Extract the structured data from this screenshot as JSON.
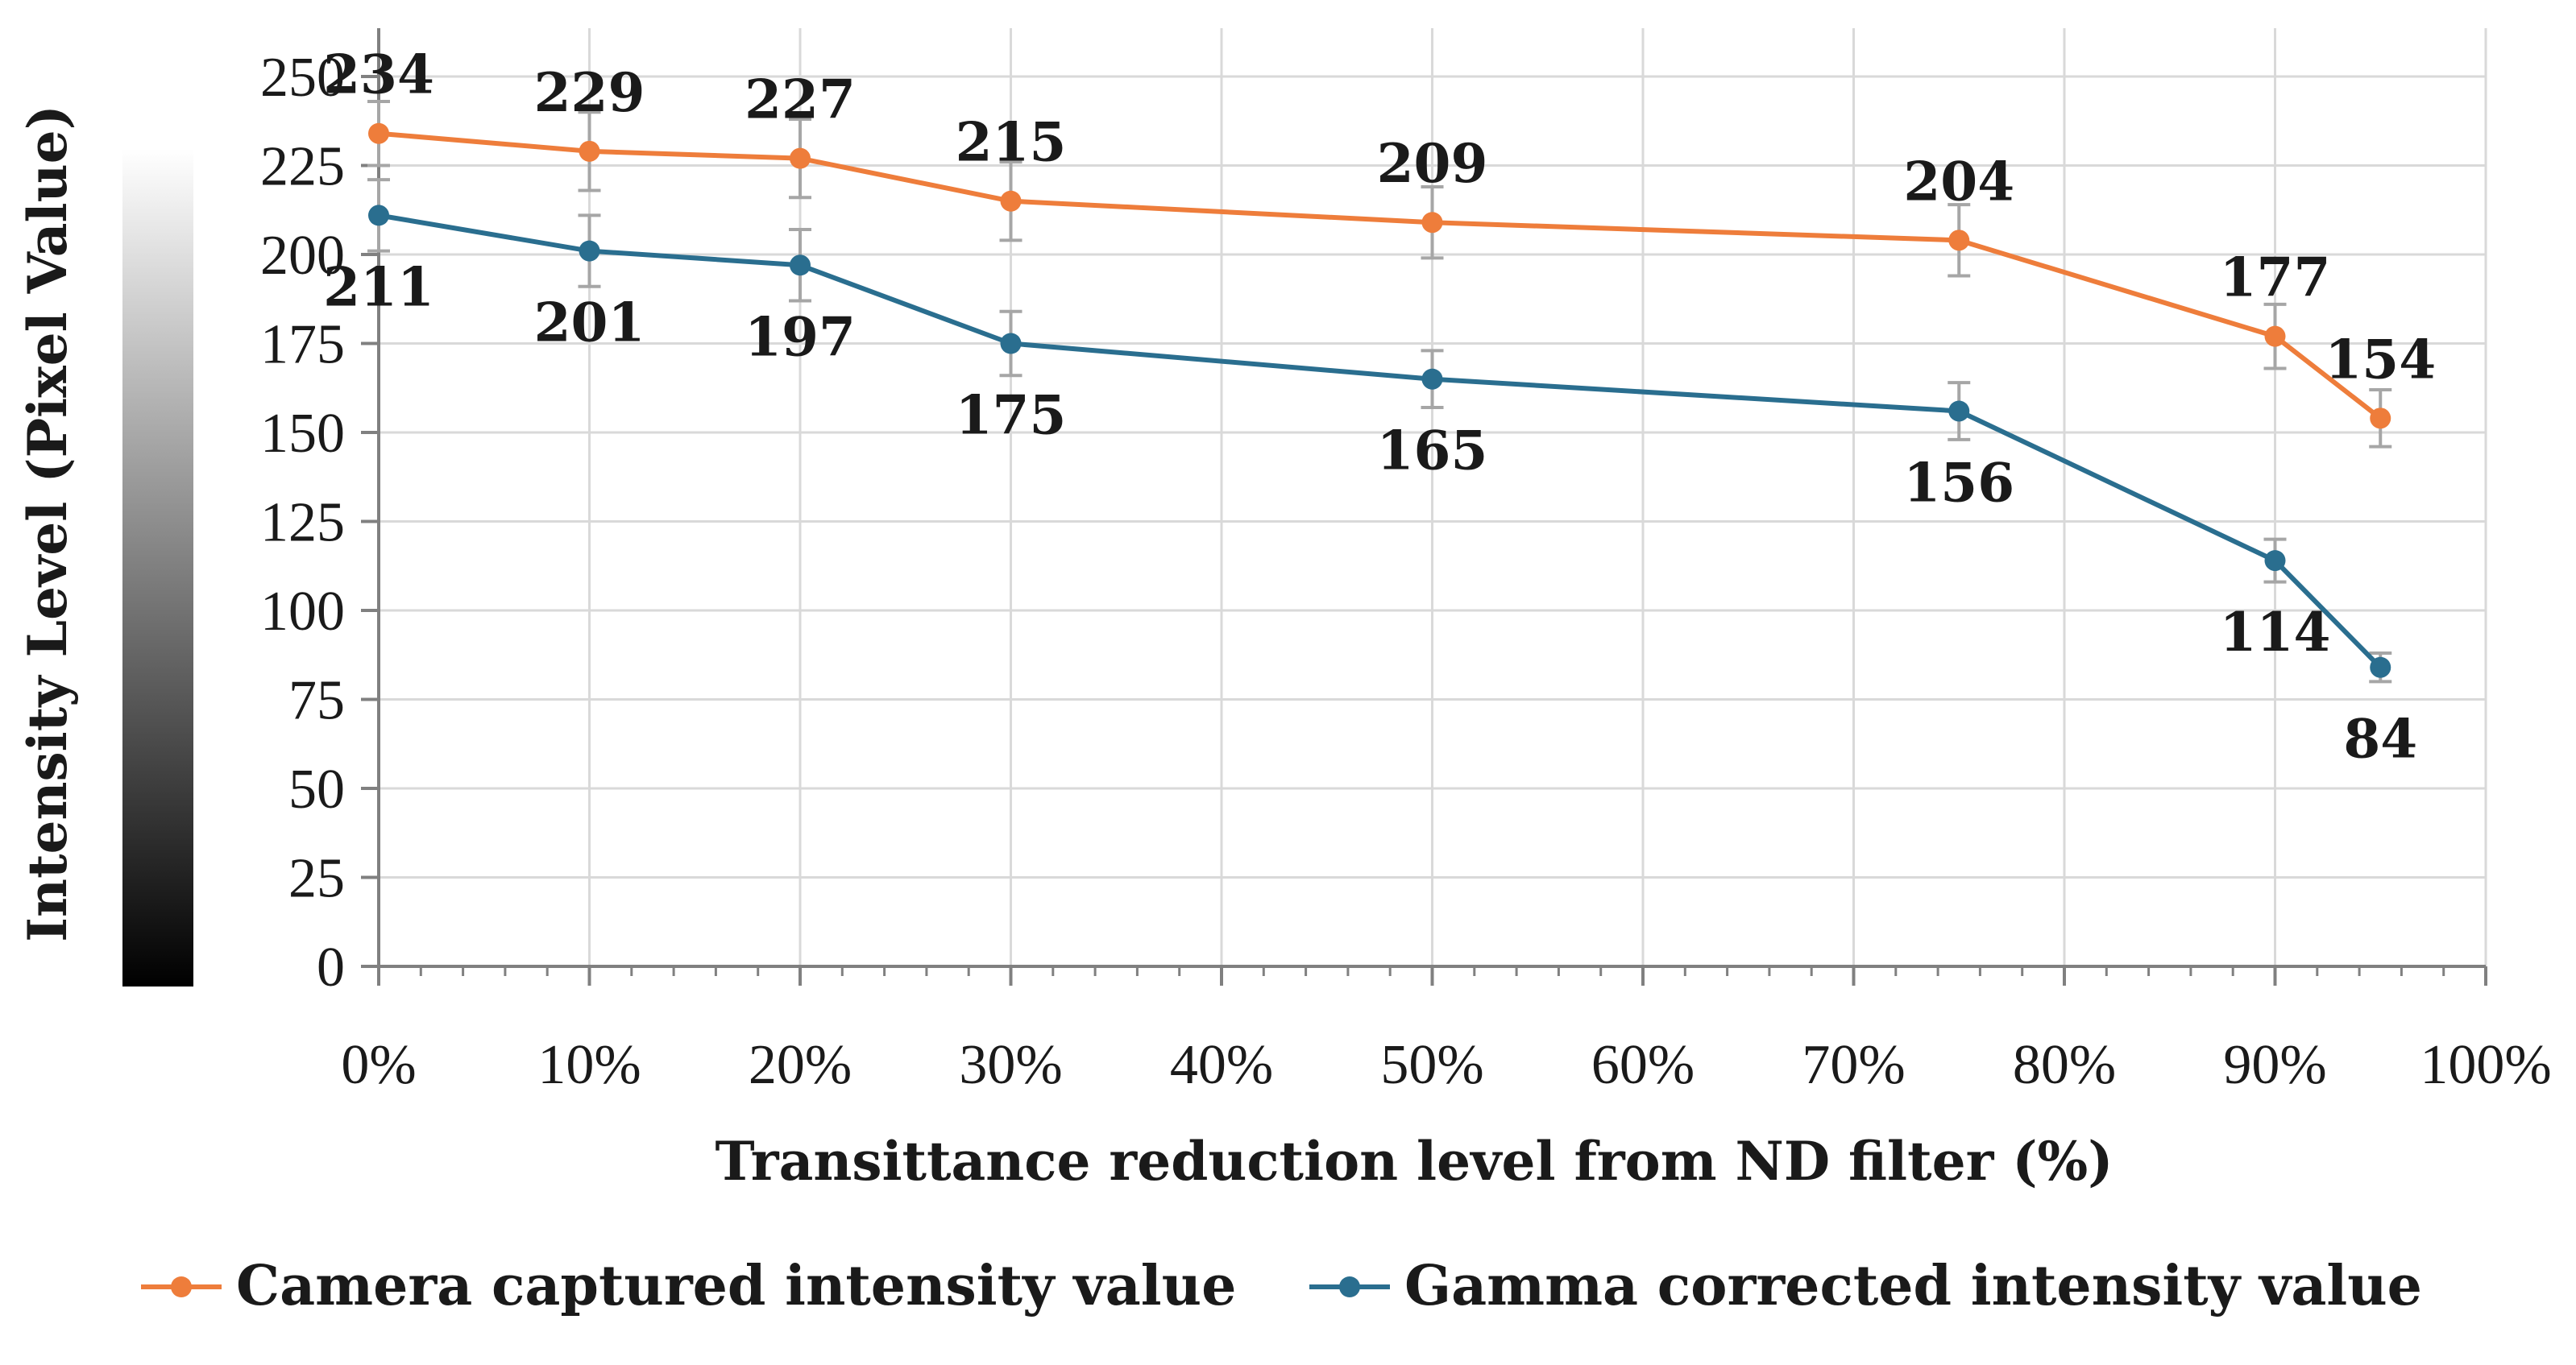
{
  "chart_data": {
    "type": "line",
    "title": "",
    "xlabel": "Transittance reduction level from ND filter (%)",
    "ylabel": "Intensity Level (Pixel Value)",
    "xlim": [
      0,
      100
    ],
    "ylim": [
      0,
      250
    ],
    "x_ticks": [
      0,
      10,
      20,
      30,
      40,
      50,
      60,
      70,
      80,
      90,
      100
    ],
    "x_tick_labels": [
      "0%",
      "10%",
      "20%",
      "30%",
      "40%",
      "50%",
      "60%",
      "70%",
      "80%",
      "90%",
      "100%"
    ],
    "y_ticks": [
      0,
      25,
      50,
      75,
      100,
      125,
      150,
      175,
      200,
      225,
      250
    ],
    "y_tick_labels": [
      "0",
      "25",
      "50",
      "75",
      "100",
      "125",
      "150",
      "175",
      "200",
      "225",
      "250"
    ],
    "grid": true,
    "legend_position": "bottom",
    "series": [
      {
        "name": "Camera captured intensity value",
        "color": "#ee7d3b",
        "x": [
          0,
          10,
          20,
          30,
          50,
          75,
          90,
          95
        ],
        "values": [
          234,
          229,
          227,
          215,
          209,
          204,
          177,
          154
        ],
        "error": [
          9,
          11,
          11,
          11,
          10,
          10,
          9,
          8
        ],
        "data_labels": [
          "234",
          "229",
          "227",
          "215",
          "209",
          "204",
          "177",
          "154"
        ],
        "label_position": "above"
      },
      {
        "name": "Gamma corrected intensity value",
        "color": "#2a6e8f",
        "x": [
          0,
          10,
          20,
          30,
          50,
          75,
          90,
          95
        ],
        "values": [
          211,
          201,
          197,
          175,
          165,
          156,
          114,
          84
        ],
        "error": [
          10,
          10,
          10,
          9,
          8,
          8,
          6,
          4
        ],
        "data_labels": [
          "211",
          "201",
          "197",
          "175",
          "165",
          "156",
          "114",
          "84"
        ],
        "label_position": "below"
      }
    ]
  }
}
